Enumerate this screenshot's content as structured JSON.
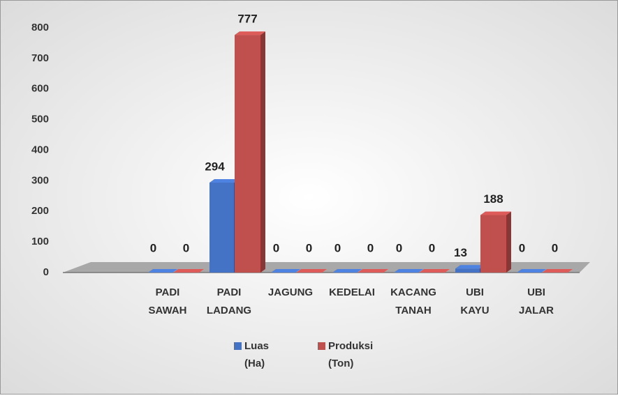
{
  "chart_data": {
    "type": "bar",
    "categories": [
      "PADI SAWAH",
      "PADI LADANG",
      "JAGUNG",
      "KEDELAI",
      "KACANG TANAH",
      "UBI KAYU",
      "UBI JALAR"
    ],
    "series": [
      {
        "name": "Luas (Ha)",
        "color": "#4472c4",
        "values": [
          0,
          294,
          0,
          0,
          0,
          13,
          0
        ]
      },
      {
        "name": "Produksi (Ton)",
        "color": "#c0504d",
        "values": [
          0,
          777,
          0,
          0,
          0,
          188,
          0
        ]
      }
    ],
    "ylim": [
      0,
      800
    ],
    "yticks": [
      0,
      100,
      200,
      300,
      400,
      500,
      600,
      700,
      800
    ],
    "grid": true,
    "legend": "bottom"
  }
}
